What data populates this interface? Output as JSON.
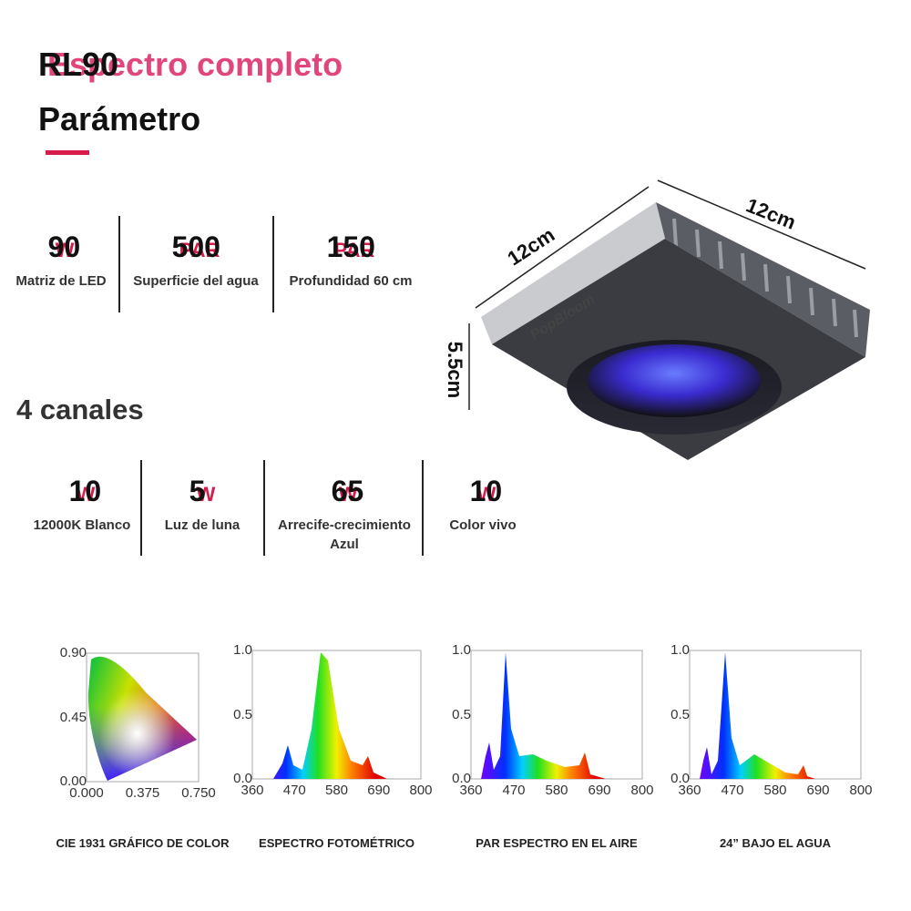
{
  "header": {
    "model": "RL90",
    "title_highlight": "Espectro completo",
    "subtitle": "Parámetro"
  },
  "specs": [
    {
      "value": 90,
      "unit": "W",
      "label": "Matriz de LED"
    },
    {
      "value": 500,
      "unit": "PAR",
      "label": "Superficie del agua"
    },
    {
      "value": 150,
      "unit": "PAR",
      "label": "Profundidad 60 cm"
    }
  ],
  "channels_title": "4 canales",
  "channels": [
    {
      "value": 10,
      "unit": "W",
      "label": "12000K Blanco"
    },
    {
      "value": 5,
      "unit": "W",
      "label": "Luz de luna"
    },
    {
      "value": 65,
      "unit": "W",
      "label": "Arrecife-crecimiento Azul"
    },
    {
      "value": 10,
      "unit": "W",
      "label": "Color vivo"
    }
  ],
  "product": {
    "brand": "PopBloom",
    "width": "12cm",
    "depth": "12cm",
    "height": "5.5cm"
  },
  "charts": [
    {
      "caption": "CIE 1931 GRÁFICO DE COLOR",
      "yticks": [
        "0.90",
        "0.45",
        "0.00"
      ],
      "xticks": [
        "0.000",
        "0.375",
        "0.750"
      ]
    },
    {
      "caption": "ESPECTRO FOTOMÉTRICO",
      "yticks": [
        "1.0",
        "0.5",
        "0.0"
      ],
      "xticks": [
        "360",
        "470",
        "580",
        "690",
        "800"
      ]
    },
    {
      "caption": "PAR ESPECTRO EN EL AIRE",
      "yticks": [
        "1.0",
        "0.5",
        "0.0"
      ],
      "xticks": [
        "360",
        "470",
        "580",
        "690",
        "800"
      ]
    },
    {
      "caption": "24” BAJO EL AGUA",
      "yticks": [
        "1.0",
        "0.5",
        "0.0"
      ],
      "xticks": [
        "360",
        "470",
        "580",
        "690",
        "800"
      ]
    }
  ]
}
